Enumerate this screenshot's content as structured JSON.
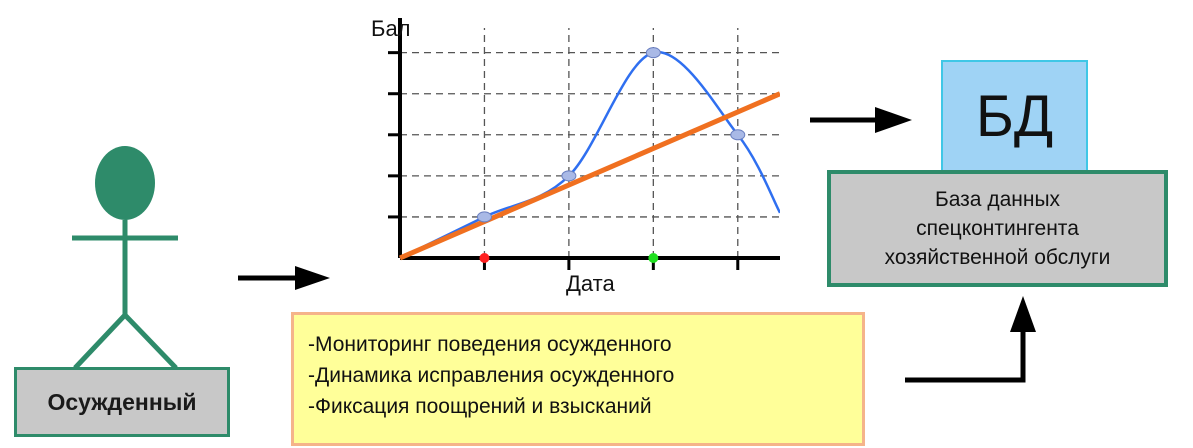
{
  "person": {
    "label": "Осужденный",
    "color": "#2e8b6a"
  },
  "chart_data": {
    "type": "line",
    "ylabel": "Бал",
    "xlabel": "Дата",
    "grid": true,
    "x_gridlines": [
      1,
      2,
      3,
      4
    ],
    "y_gridlines": [
      1,
      2,
      3,
      4,
      5
    ],
    "xlim": [
      0,
      4.5
    ],
    "ylim": [
      0,
      5.6
    ],
    "series": [
      {
        "color": "#2f6ff0",
        "x": [
          0,
          1,
          2,
          3,
          4,
          4.5
        ],
        "y": [
          0,
          1,
          2,
          5,
          3,
          1.1
        ]
      },
      {
        "color": "#f07020",
        "x": [
          0,
          4.5
        ],
        "y": [
          0,
          4
        ]
      }
    ],
    "markers": [
      {
        "x": 1,
        "y": 1
      },
      {
        "x": 2,
        "y": 2
      },
      {
        "x": 3,
        "y": 5
      },
      {
        "x": 4,
        "y": 3
      }
    ],
    "axis_points": [
      {
        "x": 1,
        "color": "#ff2020"
      },
      {
        "x": 3,
        "color": "#20e020"
      }
    ]
  },
  "db": {
    "title": "БД",
    "desc_lines": [
      "База данных",
      "спецконтингента",
      "хозяйственной обслуги"
    ]
  },
  "notes": {
    "lines": [
      "-Мониторинг поведения осужденного",
      "-Динамика исправления осужденного",
      "-Фиксация поощрений и взысканий"
    ]
  }
}
